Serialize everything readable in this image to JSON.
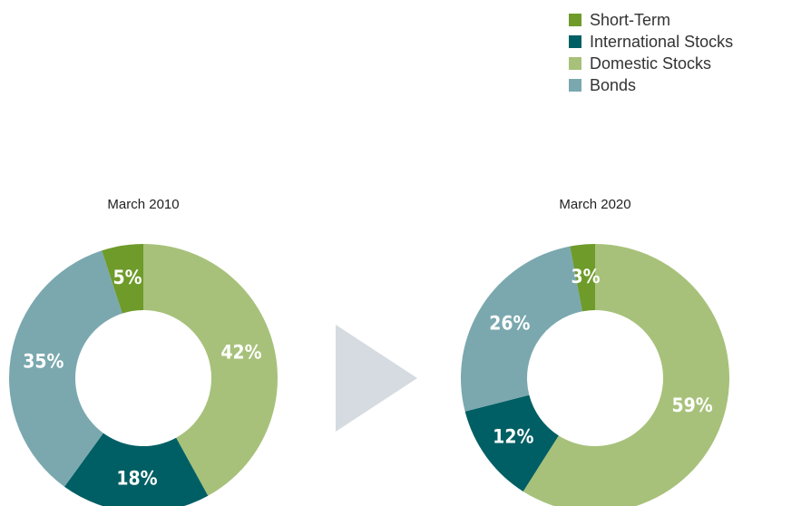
{
  "chart_data": [
    {
      "type": "pie",
      "title": "March 2010",
      "categories": [
        "Domestic Stocks",
        "International Stocks",
        "Bonds",
        "Short-Term"
      ],
      "values": [
        42,
        18,
        35,
        5
      ],
      "value_labels": [
        "42%",
        "18%",
        "35%",
        "5%"
      ],
      "colors": [
        "#a7c17a",
        "#005f64",
        "#7aa8ae",
        "#6e9b2a"
      ]
    },
    {
      "type": "pie",
      "title": "March 2020",
      "categories": [
        "Domestic Stocks",
        "International Stocks",
        "Bonds",
        "Short-Term"
      ],
      "values": [
        59,
        12,
        26,
        3
      ],
      "value_labels": [
        "59%",
        "12%",
        "26%",
        "3%"
      ],
      "colors": [
        "#a7c17a",
        "#005f64",
        "#7aa8ae",
        "#6e9b2a"
      ]
    }
  ]
}
